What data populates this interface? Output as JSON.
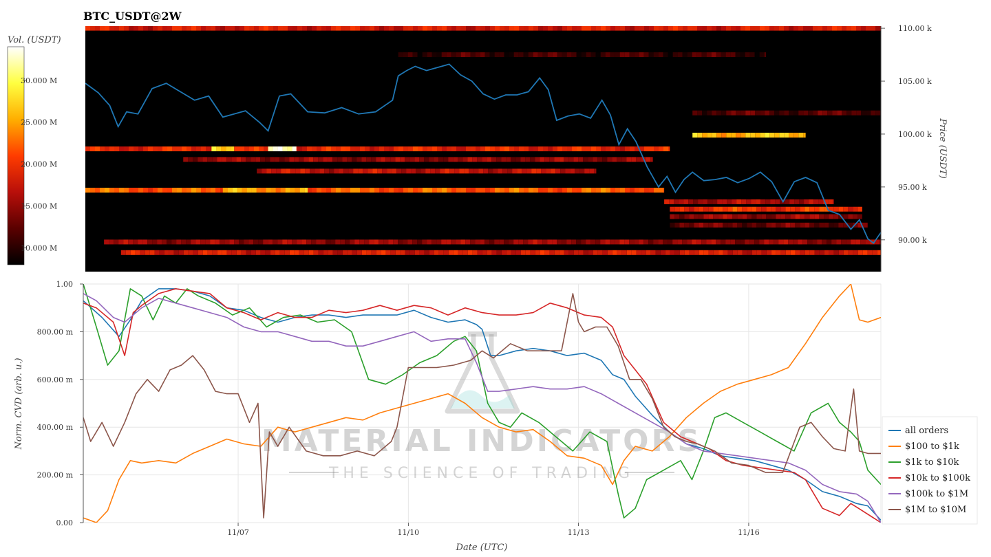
{
  "title": "BTC_USDT@2W",
  "colorbar": {
    "label": "Vol. (USDT)",
    "ticks": [
      {
        "value": 10,
        "label": "10.000 M"
      },
      {
        "value": 15,
        "label": "15.000 M"
      },
      {
        "value": 20,
        "label": "20.000 M"
      },
      {
        "value": 25,
        "label": "25.000 M"
      },
      {
        "value": 30,
        "label": "30.000 M"
      }
    ],
    "range": [
      8,
      34
    ],
    "colors": [
      "#000000",
      "#5a0000",
      "#b80f0a",
      "#ff3c00",
      "#ffae00",
      "#ffff40",
      "#ffffff"
    ]
  },
  "price_axis": {
    "label": "Price (USDT)",
    "ticks": [
      {
        "value": 90000,
        "label": "90.00 k"
      },
      {
        "value": 95000,
        "label": "95.00 k"
      },
      {
        "value": 100000,
        "label": "100.00 k"
      },
      {
        "value": 105000,
        "label": "105.00 k"
      },
      {
        "value": 110000,
        "label": "110.00 k"
      }
    ]
  },
  "cvd_axis": {
    "label": "Norm. CVD (arb. u.)",
    "ticks": [
      {
        "value": 0,
        "label": "0.00"
      },
      {
        "value": 0.2,
        "label": "200.00 m"
      },
      {
        "value": 0.4,
        "label": "400.00 m"
      },
      {
        "value": 0.6,
        "label": "600.00 m"
      },
      {
        "value": 0.8,
        "label": "800.00 m"
      },
      {
        "value": 1.0,
        "label": "1.00"
      }
    ]
  },
  "x_axis": {
    "label": "Date (UTC)",
    "ticks": [
      {
        "value": 7,
        "label": "11/07"
      },
      {
        "value": 10,
        "label": "11/10"
      },
      {
        "value": 13,
        "label": "11/13"
      },
      {
        "value": 16,
        "label": "11/16"
      }
    ]
  },
  "watermark": {
    "line1": "MATERIAL INDICATORS",
    "line2": "THE SCIENCE OF TRADING"
  },
  "chart_data": [
    {
      "type": "heatmap",
      "title": "BTC_USDT@2W",
      "ylabel": "Price (USDT)",
      "ylim": [
        87000,
        110200
      ],
      "xlim": [
        4.27,
        18.33
      ],
      "x_units": "day of November (UTC)",
      "price_series": {
        "name": "price",
        "color": "#1f77b4",
        "x": [
          4.27,
          4.5,
          4.7,
          4.85,
          5.0,
          5.2,
          5.45,
          5.7,
          5.95,
          6.2,
          6.45,
          6.7,
          6.9,
          7.1,
          7.35,
          7.5,
          7.7,
          7.9,
          8.2,
          8.5,
          8.8,
          9.1,
          9.4,
          9.7,
          9.8,
          9.95,
          10.1,
          10.3,
          10.5,
          10.7,
          10.9,
          11.1,
          11.3,
          11.5,
          11.7,
          11.9,
          12.1,
          12.3,
          12.45,
          12.6,
          12.8,
          13.0,
          13.2,
          13.4,
          13.55,
          13.7,
          13.85,
          14.0,
          14.2,
          14.4,
          14.55,
          14.7,
          14.85,
          15.0,
          15.2,
          15.4,
          15.6,
          15.8,
          16.0,
          16.2,
          16.4,
          16.6,
          16.8,
          17.0,
          17.2,
          17.4,
          17.6,
          17.8,
          17.95,
          18.1,
          18.2,
          18.33
        ],
        "y": [
          104800,
          103900,
          102700,
          100700,
          102100,
          101900,
          104300,
          104800,
          104000,
          103200,
          103600,
          101600,
          101900,
          102200,
          101100,
          100300,
          103600,
          103800,
          102100,
          102000,
          102500,
          101900,
          102100,
          103200,
          105500,
          106000,
          106400,
          106000,
          106300,
          106600,
          105600,
          105000,
          103800,
          103300,
          103700,
          103700,
          104000,
          105300,
          104200,
          101300,
          101700,
          101900,
          101500,
          103200,
          101800,
          99000,
          100500,
          99300,
          96900,
          95000,
          96000,
          94500,
          95700,
          96400,
          95600,
          95700,
          95900,
          95400,
          95800,
          96400,
          95500,
          93600,
          95500,
          95900,
          95400,
          92800,
          92400,
          91000,
          91900,
          90100,
          89700,
          90700
        ]
      },
      "liquidity_bands": [
        {
          "price": 110000,
          "x0": 4.27,
          "x1": 18.33,
          "vol": 18
        },
        {
          "price": 98600,
          "x0": 4.27,
          "x1": 14.6,
          "vol": 19
        },
        {
          "price": 98600,
          "x0": 6.5,
          "x1": 6.9,
          "vol": 27
        },
        {
          "price": 98600,
          "x0": 7.5,
          "x1": 8.0,
          "vol": 34
        },
        {
          "price": 97600,
          "x0": 6.0,
          "x1": 14.3,
          "vol": 15
        },
        {
          "price": 96500,
          "x0": 7.3,
          "x1": 13.3,
          "vol": 17
        },
        {
          "price": 94700,
          "x0": 4.27,
          "x1": 14.5,
          "vol": 22
        },
        {
          "price": 94700,
          "x0": 6.7,
          "x1": 8.2,
          "vol": 25
        },
        {
          "price": 99900,
          "x0": 15.0,
          "x1": 17.0,
          "vol": 26
        },
        {
          "price": 92900,
          "x0": 14.6,
          "x1": 18.0,
          "vol": 20
        },
        {
          "price": 92200,
          "x0": 14.6,
          "x1": 18.0,
          "vol": 15
        },
        {
          "price": 91400,
          "x0": 14.6,
          "x1": 18.1,
          "vol": 13
        },
        {
          "price": 89800,
          "x0": 4.6,
          "x1": 18.33,
          "vol": 15
        },
        {
          "price": 88800,
          "x0": 4.9,
          "x1": 18.33,
          "vol": 18
        },
        {
          "price": 93600,
          "x0": 14.5,
          "x1": 17.5,
          "vol": 16
        },
        {
          "price": 107500,
          "x0": 9.8,
          "x1": 16.3,
          "vol": 11
        },
        {
          "price": 102000,
          "x0": 15.0,
          "x1": 18.33,
          "vol": 12
        }
      ]
    },
    {
      "type": "line",
      "xlabel": "Date (UTC)",
      "ylabel": "Norm. CVD (arb. u.)",
      "ylim": [
        0,
        1
      ],
      "xlim": [
        4.27,
        18.33
      ],
      "x_units": "day of November (UTC)",
      "legend_position": "bottom-right",
      "series": [
        {
          "name": "all orders",
          "color": "#1f77b4",
          "x": [
            4.27,
            4.6,
            4.9,
            5.1,
            5.3,
            5.6,
            5.9,
            6.2,
            6.5,
            6.8,
            7.1,
            7.4,
            7.7,
            8.0,
            8.3,
            8.6,
            8.9,
            9.2,
            9.5,
            9.8,
            10.1,
            10.4,
            10.7,
            11.0,
            11.2,
            11.3,
            11.45,
            11.6,
            11.9,
            12.2,
            12.5,
            12.8,
            13.1,
            13.4,
            13.6,
            13.8,
            14.0,
            14.3,
            14.6,
            14.9,
            15.2,
            15.5,
            15.8,
            16.1,
            16.4,
            16.7,
            17.0,
            17.3,
            17.6,
            17.9,
            18.1,
            18.33
          ],
          "y": [
            0.93,
            0.86,
            0.78,
            0.85,
            0.93,
            0.98,
            0.98,
            0.97,
            0.95,
            0.9,
            0.89,
            0.86,
            0.84,
            0.86,
            0.87,
            0.87,
            0.86,
            0.87,
            0.87,
            0.87,
            0.89,
            0.86,
            0.84,
            0.85,
            0.83,
            0.81,
            0.7,
            0.7,
            0.72,
            0.73,
            0.72,
            0.7,
            0.71,
            0.68,
            0.62,
            0.6,
            0.53,
            0.45,
            0.38,
            0.33,
            0.31,
            0.28,
            0.27,
            0.26,
            0.24,
            0.22,
            0.18,
            0.13,
            0.11,
            0.08,
            0.07,
            0.01
          ]
        },
        {
          "name": "$100 to $1k",
          "color": "#ff7f0e",
          "x": [
            4.27,
            4.5,
            4.7,
            4.9,
            5.1,
            5.3,
            5.6,
            5.9,
            6.2,
            6.5,
            6.8,
            7.1,
            7.4,
            7.7,
            8.0,
            8.3,
            8.6,
            8.9,
            9.2,
            9.5,
            9.8,
            10.1,
            10.4,
            10.7,
            11.0,
            11.3,
            11.6,
            11.9,
            12.2,
            12.5,
            12.8,
            13.1,
            13.4,
            13.6,
            13.8,
            14.0,
            14.3,
            14.6,
            14.9,
            15.2,
            15.5,
            15.8,
            16.1,
            16.4,
            16.7,
            17.0,
            17.3,
            17.6,
            17.8,
            17.95,
            18.1,
            18.33
          ],
          "y": [
            0.02,
            0.0,
            0.05,
            0.18,
            0.26,
            0.25,
            0.26,
            0.25,
            0.29,
            0.32,
            0.35,
            0.33,
            0.32,
            0.4,
            0.38,
            0.4,
            0.42,
            0.44,
            0.43,
            0.46,
            0.48,
            0.5,
            0.52,
            0.54,
            0.5,
            0.44,
            0.4,
            0.38,
            0.39,
            0.34,
            0.28,
            0.27,
            0.24,
            0.16,
            0.26,
            0.32,
            0.3,
            0.36,
            0.44,
            0.5,
            0.55,
            0.58,
            0.6,
            0.62,
            0.65,
            0.75,
            0.86,
            0.95,
            1.0,
            0.85,
            0.84,
            0.86
          ]
        },
        {
          "name": "$1k to $10k",
          "color": "#2ca02c",
          "x": [
            4.27,
            4.5,
            4.7,
            4.9,
            5.1,
            5.3,
            5.5,
            5.7,
            5.9,
            6.1,
            6.3,
            6.6,
            6.9,
            7.2,
            7.5,
            7.8,
            8.1,
            8.4,
            8.7,
            9.0,
            9.3,
            9.6,
            9.9,
            10.2,
            10.5,
            10.8,
            11.0,
            11.2,
            11.4,
            11.6,
            11.8,
            12.0,
            12.3,
            12.6,
            12.9,
            13.2,
            13.5,
            13.7,
            13.8,
            14.0,
            14.2,
            14.5,
            14.8,
            15.0,
            15.2,
            15.4,
            15.6,
            15.9,
            16.2,
            16.5,
            16.8,
            17.1,
            17.4,
            17.6,
            17.8,
            17.95,
            18.1,
            18.33
          ],
          "y": [
            1.0,
            0.82,
            0.66,
            0.72,
            0.98,
            0.95,
            0.85,
            0.95,
            0.92,
            0.98,
            0.95,
            0.92,
            0.87,
            0.9,
            0.82,
            0.86,
            0.87,
            0.84,
            0.85,
            0.8,
            0.6,
            0.58,
            0.62,
            0.67,
            0.7,
            0.76,
            0.78,
            0.72,
            0.5,
            0.42,
            0.4,
            0.46,
            0.42,
            0.36,
            0.3,
            0.38,
            0.34,
            0.12,
            0.02,
            0.06,
            0.18,
            0.22,
            0.26,
            0.18,
            0.3,
            0.44,
            0.46,
            0.42,
            0.38,
            0.34,
            0.3,
            0.46,
            0.5,
            0.42,
            0.38,
            0.34,
            0.22,
            0.16
          ]
        },
        {
          "name": "$10k to $100k",
          "color": "#d62728",
          "x": [
            4.27,
            4.5,
            4.8,
            5.0,
            5.15,
            5.3,
            5.6,
            5.9,
            6.2,
            6.5,
            6.8,
            7.1,
            7.4,
            7.7,
            8.0,
            8.3,
            8.6,
            8.9,
            9.2,
            9.5,
            9.8,
            10.1,
            10.4,
            10.7,
            11.0,
            11.3,
            11.6,
            11.9,
            12.2,
            12.5,
            12.8,
            13.1,
            13.4,
            13.6,
            13.8,
            14.0,
            14.2,
            14.5,
            14.8,
            15.0,
            15.3,
            15.6,
            15.9,
            16.2,
            16.5,
            16.8,
            17.0,
            17.3,
            17.6,
            17.8,
            18.0,
            18.33
          ],
          "y": [
            0.92,
            0.9,
            0.84,
            0.7,
            0.88,
            0.91,
            0.96,
            0.98,
            0.97,
            0.96,
            0.9,
            0.88,
            0.85,
            0.88,
            0.86,
            0.86,
            0.89,
            0.88,
            0.89,
            0.91,
            0.89,
            0.91,
            0.9,
            0.87,
            0.9,
            0.88,
            0.87,
            0.87,
            0.88,
            0.92,
            0.9,
            0.87,
            0.86,
            0.82,
            0.7,
            0.64,
            0.58,
            0.42,
            0.36,
            0.34,
            0.31,
            0.26,
            0.24,
            0.23,
            0.22,
            0.21,
            0.18,
            0.06,
            0.03,
            0.08,
            0.05,
            0.0
          ]
        },
        {
          "name": "$100k to $1M",
          "color": "#9467bd",
          "x": [
            4.27,
            4.5,
            4.8,
            5.0,
            5.3,
            5.6,
            5.9,
            6.2,
            6.5,
            6.8,
            7.1,
            7.4,
            7.7,
            8.0,
            8.3,
            8.6,
            8.9,
            9.2,
            9.5,
            9.8,
            10.1,
            10.4,
            10.7,
            11.0,
            11.2,
            11.4,
            11.6,
            11.9,
            12.2,
            12.5,
            12.8,
            13.1,
            13.4,
            13.7,
            14.0,
            14.3,
            14.6,
            14.9,
            15.2,
            15.5,
            15.8,
            16.1,
            16.4,
            16.7,
            17.0,
            17.3,
            17.6,
            17.9,
            18.1,
            18.33
          ],
          "y": [
            0.96,
            0.93,
            0.86,
            0.84,
            0.9,
            0.94,
            0.92,
            0.9,
            0.88,
            0.86,
            0.82,
            0.8,
            0.8,
            0.78,
            0.76,
            0.76,
            0.74,
            0.74,
            0.76,
            0.78,
            0.8,
            0.76,
            0.77,
            0.77,
            0.67,
            0.55,
            0.55,
            0.56,
            0.57,
            0.56,
            0.56,
            0.57,
            0.54,
            0.5,
            0.46,
            0.42,
            0.38,
            0.33,
            0.3,
            0.29,
            0.28,
            0.27,
            0.26,
            0.25,
            0.22,
            0.16,
            0.13,
            0.12,
            0.09,
            0.0
          ]
        },
        {
          "name": "$1M to $10M",
          "color": "#8c564b",
          "x": [
            4.27,
            4.4,
            4.6,
            4.8,
            5.0,
            5.2,
            5.4,
            5.6,
            5.8,
            6.0,
            6.2,
            6.4,
            6.6,
            6.8,
            7.0,
            7.2,
            7.35,
            7.45,
            7.55,
            7.7,
            7.9,
            8.2,
            8.5,
            8.8,
            9.1,
            9.4,
            9.7,
            9.8,
            10.0,
            10.2,
            10.5,
            10.8,
            11.1,
            11.3,
            11.5,
            11.8,
            12.1,
            12.4,
            12.7,
            12.9,
            13.0,
            13.1,
            13.3,
            13.5,
            13.7,
            13.9,
            14.1,
            14.3,
            14.5,
            14.7,
            14.9,
            15.1,
            15.4,
            15.7,
            16.0,
            16.3,
            16.6,
            16.9,
            17.1,
            17.3,
            17.5,
            17.7,
            17.85,
            17.95,
            18.1,
            18.33
          ],
          "y": [
            0.44,
            0.34,
            0.42,
            0.32,
            0.42,
            0.54,
            0.6,
            0.55,
            0.64,
            0.66,
            0.7,
            0.64,
            0.55,
            0.54,
            0.54,
            0.42,
            0.5,
            0.02,
            0.38,
            0.32,
            0.4,
            0.3,
            0.28,
            0.28,
            0.3,
            0.28,
            0.34,
            0.4,
            0.65,
            0.65,
            0.65,
            0.66,
            0.68,
            0.72,
            0.69,
            0.75,
            0.72,
            0.72,
            0.72,
            0.96,
            0.84,
            0.8,
            0.82,
            0.82,
            0.74,
            0.6,
            0.6,
            0.52,
            0.4,
            0.36,
            0.34,
            0.33,
            0.3,
            0.25,
            0.24,
            0.21,
            0.21,
            0.4,
            0.42,
            0.36,
            0.31,
            0.3,
            0.56,
            0.3,
            0.29,
            0.29
          ]
        }
      ]
    }
  ]
}
